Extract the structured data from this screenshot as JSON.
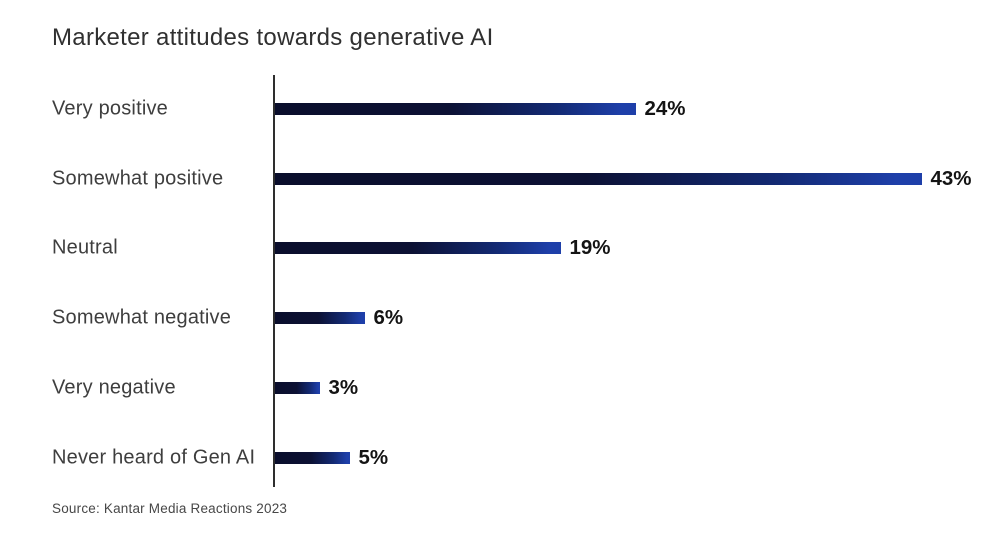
{
  "chart_data": {
    "type": "bar",
    "orientation": "horizontal",
    "title": "Marketer attitudes towards generative AI",
    "categories": [
      "Very positive",
      "Somewhat positive",
      "Neutral",
      "Somewhat negative",
      "Very negative",
      "Never heard of Gen AI"
    ],
    "values": [
      24,
      43,
      19,
      6,
      3,
      5
    ],
    "value_labels": [
      "24%",
      "43%",
      "19%",
      "6%",
      "3%",
      "5%"
    ],
    "unit": "%",
    "xlim": [
      0,
      46
    ],
    "grid": false,
    "legend": false,
    "data_labels_position": "end-of-bar",
    "bar_color_dark": "#0a0e2c",
    "bar_color_mid": "#0c1134",
    "bar_color_deepblue": "#132a74",
    "bar_color_bright": "#1e3fa9",
    "axis_color": "#2e2e2e",
    "title_color": "#303030",
    "label_color": "#3e3e3e",
    "value_color": "#141414",
    "source": "Source: Kantar Media Reactions 2023"
  }
}
